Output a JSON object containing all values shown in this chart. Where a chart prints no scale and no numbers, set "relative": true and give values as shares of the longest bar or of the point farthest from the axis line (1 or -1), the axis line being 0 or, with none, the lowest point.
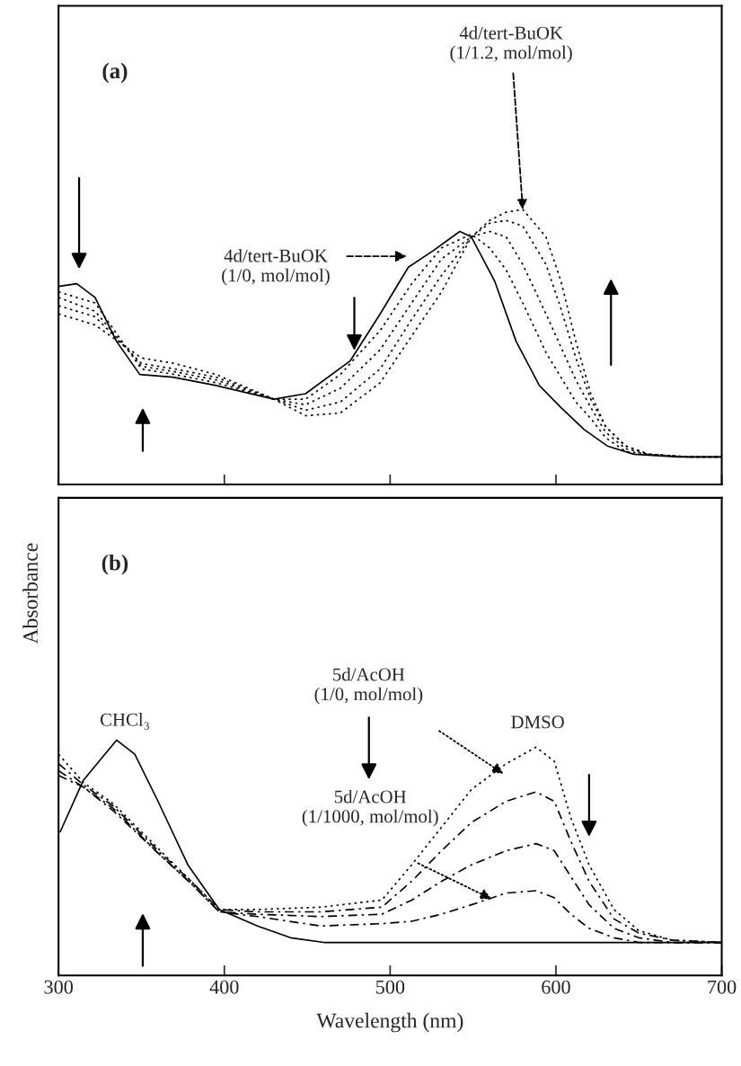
{
  "chart_data": [
    {
      "type": "line",
      "relative": true,
      "xlim": [
        300,
        700
      ],
      "xticks": [
        300,
        400,
        500,
        600,
        700
      ],
      "tick_labels": false,
      "series": [
        {
          "color": "#000000",
          "line_style": "solid",
          "x": [
            300,
            311,
            322,
            335,
            349,
            369,
            395,
            430,
            449,
            476,
            494,
            511,
            526,
            542,
            549,
            563,
            576,
            590,
            603,
            617,
            631,
            647,
            674,
            700
          ],
          "values": [
            0.72,
            0.73,
            0.68,
            0.52,
            0.4,
            0.39,
            0.36,
            0.31,
            0.33,
            0.45,
            0.62,
            0.79,
            0.85,
            0.92,
            0.9,
            0.74,
            0.52,
            0.36,
            0.28,
            0.2,
            0.14,
            0.11,
            0.1,
            0.1
          ]
        },
        {
          "color": "#000000",
          "line_style": "dotted",
          "x": [
            300,
            322,
            350,
            370,
            395,
            430,
            449,
            470,
            494,
            513,
            531,
            549,
            560,
            570,
            580,
            594,
            603,
            612,
            621,
            630,
            642,
            656,
            680,
            700
          ],
          "values": [
            0.7,
            0.66,
            0.42,
            0.4,
            0.37,
            0.31,
            0.31,
            0.4,
            0.56,
            0.73,
            0.86,
            0.91,
            0.86,
            0.78,
            0.66,
            0.48,
            0.39,
            0.3,
            0.24,
            0.17,
            0.12,
            0.11,
            0.1,
            0.1
          ]
        },
        {
          "color": "#000000",
          "line_style": "dotted",
          "x": [
            300,
            322,
            350,
            370,
            395,
            430,
            449,
            470,
            494,
            513,
            531,
            549,
            560,
            570,
            580,
            594,
            603,
            612,
            621,
            630,
            642,
            656,
            680,
            700
          ],
          "values": [
            0.68,
            0.63,
            0.43,
            0.41,
            0.38,
            0.31,
            0.29,
            0.35,
            0.49,
            0.66,
            0.82,
            0.9,
            0.92,
            0.9,
            0.8,
            0.62,
            0.5,
            0.38,
            0.28,
            0.19,
            0.13,
            0.11,
            0.1,
            0.1
          ]
        },
        {
          "color": "#000000",
          "line_style": "dotted",
          "x": [
            300,
            322,
            350,
            370,
            395,
            430,
            449,
            470,
            494,
            513,
            531,
            549,
            560,
            570,
            580,
            594,
            603,
            612,
            621,
            630,
            642,
            656,
            680,
            700
          ],
          "values": [
            0.65,
            0.61,
            0.44,
            0.42,
            0.39,
            0.31,
            0.27,
            0.3,
            0.42,
            0.6,
            0.76,
            0.9,
            0.95,
            0.96,
            0.94,
            0.8,
            0.64,
            0.46,
            0.31,
            0.21,
            0.14,
            0.11,
            0.1,
            0.1
          ]
        },
        {
          "color": "#000000",
          "line_style": "dotted",
          "x": [
            300,
            322,
            350,
            370,
            395,
            430,
            449,
            470,
            494,
            513,
            531,
            549,
            560,
            570,
            580,
            594,
            603,
            612,
            621,
            630,
            642,
            656,
            680,
            700
          ],
          "values": [
            0.62,
            0.58,
            0.46,
            0.44,
            0.4,
            0.31,
            0.25,
            0.26,
            0.37,
            0.54,
            0.7,
            0.9,
            0.96,
            0.99,
            1.0,
            0.9,
            0.74,
            0.52,
            0.33,
            0.21,
            0.14,
            0.11,
            0.1,
            0.1
          ]
        }
      ],
      "annotations": [
        "(a)",
        "4d/tert-BuOK\n(1/0, mol/mol)",
        {
          "text": "4d/tert-BuOK\n(1/1.2, mol/mol)",
          "x": 580,
          "y": 1.0
        }
      ]
    },
    {
      "type": "line",
      "relative": true,
      "xlim": [
        300,
        700
      ],
      "xticks": [
        300,
        400,
        500,
        600,
        700
      ],
      "tick_labels": "x",
      "xlabel": "Wavelength (nm)",
      "ylabel": "Absorbance",
      "series": [
        {
          "color": "#000000",
          "line_style": "solid",
          "x": [
            301,
            315,
            335,
            346,
            360,
            378,
            397,
            420,
            440,
            460,
            500,
            600,
            700
          ],
          "values": [
            0.61,
            0.83,
            1.0,
            0.94,
            0.74,
            0.47,
            0.28,
            0.21,
            0.16,
            0.14,
            0.14,
            0.14,
            0.14
          ]
        },
        {
          "color": "#000000",
          "line_style": "dotted",
          "x": [
            300,
            315,
            333,
            360,
            380,
            397,
            420,
            458,
            495,
            513,
            531,
            549,
            570,
            588,
            599,
            609,
            620,
            635,
            650,
            670,
            700
          ],
          "values": [
            0.94,
            0.82,
            0.73,
            0.54,
            0.4,
            0.28,
            0.28,
            0.29,
            0.32,
            0.47,
            0.63,
            0.79,
            0.9,
            0.97,
            0.91,
            0.67,
            0.47,
            0.28,
            0.19,
            0.15,
            0.14
          ]
        },
        {
          "color": "#000000",
          "line_style": "dashed",
          "x": [
            300,
            315,
            333,
            360,
            380,
            397,
            420,
            458,
            495,
            513,
            531,
            549,
            570,
            588,
            599,
            609,
            620,
            635,
            650,
            670,
            700
          ],
          "values": [
            0.9,
            0.81,
            0.72,
            0.53,
            0.4,
            0.28,
            0.27,
            0.27,
            0.29,
            0.4,
            0.53,
            0.65,
            0.74,
            0.78,
            0.74,
            0.57,
            0.4,
            0.24,
            0.18,
            0.15,
            0.14
          ]
        },
        {
          "color": "#000000",
          "line_style": "dashed",
          "x": [
            300,
            315,
            333,
            360,
            380,
            397,
            420,
            458,
            495,
            513,
            531,
            549,
            570,
            588,
            599,
            609,
            620,
            635,
            650,
            670,
            700
          ],
          "values": [
            0.87,
            0.8,
            0.71,
            0.52,
            0.39,
            0.27,
            0.26,
            0.25,
            0.26,
            0.32,
            0.4,
            0.47,
            0.53,
            0.56,
            0.53,
            0.42,
            0.3,
            0.2,
            0.16,
            0.14,
            0.14
          ]
        },
        {
          "color": "#000000",
          "line_style": "dashed",
          "x": [
            300,
            315,
            333,
            360,
            380,
            397,
            420,
            458,
            495,
            513,
            531,
            549,
            570,
            588,
            599,
            609,
            620,
            635,
            650,
            670,
            700
          ],
          "values": [
            0.85,
            0.8,
            0.7,
            0.52,
            0.39,
            0.27,
            0.25,
            0.21,
            0.22,
            0.23,
            0.26,
            0.3,
            0.35,
            0.36,
            0.33,
            0.26,
            0.2,
            0.16,
            0.14,
            0.14,
            0.14
          ]
        }
      ],
      "annotations": [
        "(b)",
        {
          "text": "CHCl₃",
          "x": 335,
          "y": 1.0
        },
        {
          "text": "DMSO",
          "x": 588,
          "y": 0.97
        },
        "5d/AcOH\n(1/0, mol/mol)",
        "5d/AcOH\n(1/1000, mol/mol)"
      ]
    }
  ]
}
